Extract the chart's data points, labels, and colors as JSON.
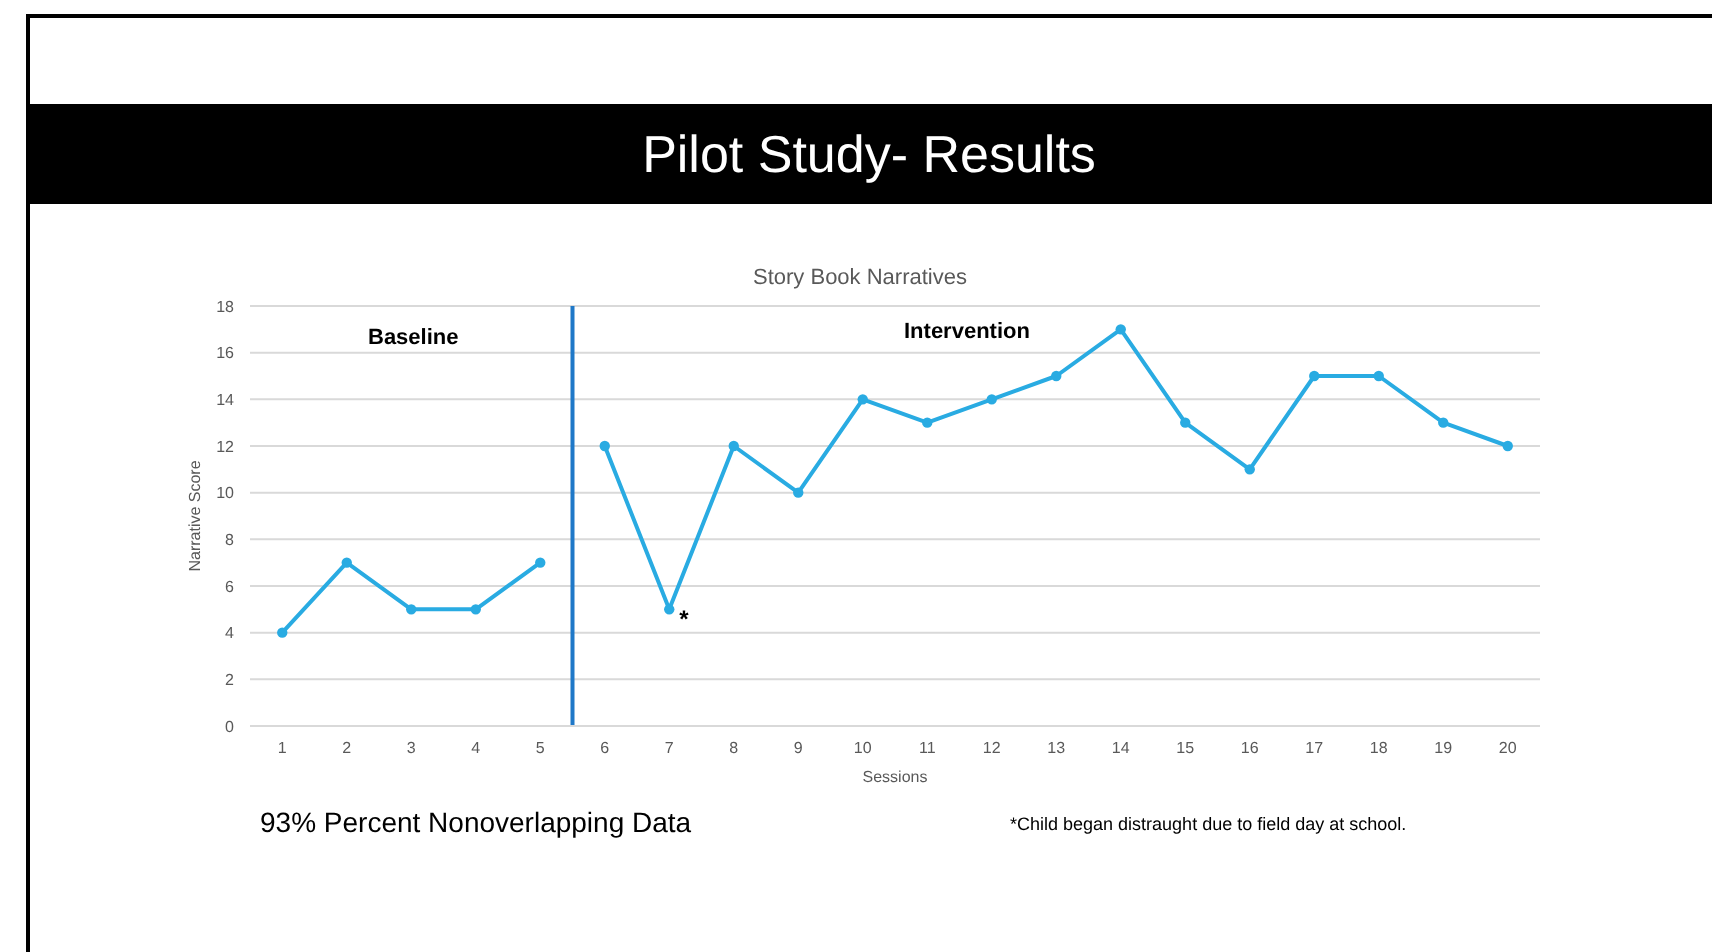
{
  "chart_data": {
    "type": "line",
    "title": "Pilot Study- Results",
    "subtitle": "Story Book Narratives",
    "xlabel": "Sessions",
    "ylabel": "Narrative Score",
    "xlim": [
      0.5,
      20.5
    ],
    "xticks": [
      1,
      2,
      3,
      4,
      5,
      6,
      7,
      8,
      9,
      10,
      11,
      12,
      13,
      14,
      15,
      16,
      17,
      18,
      19,
      20
    ],
    "ylim": [
      0,
      18
    ],
    "yticks": [
      0,
      2,
      4,
      6,
      8,
      10,
      12,
      14,
      16,
      18
    ],
    "grid": "y",
    "marker": "circle",
    "line_style": "solid",
    "series": [
      {
        "color": "#29abe2",
        "x": [
          1,
          2,
          3,
          4,
          5
        ],
        "values": [
          4,
          7,
          5,
          5,
          7
        ]
      },
      {
        "color": "#29abe2",
        "x": [
          6,
          7,
          8,
          9,
          10,
          11,
          12,
          13,
          14,
          15,
          16,
          17,
          18,
          19,
          20
        ],
        "values": [
          12,
          5,
          12,
          10,
          14,
          13,
          14,
          15,
          17,
          13,
          11,
          15,
          15,
          13,
          12
        ]
      }
    ],
    "ref_lines": [
      {
        "axis": "x",
        "value": 5.5,
        "color": "#1f78c8"
      }
    ],
    "annotations": [
      "Baseline",
      "Intervention",
      {
        "text": "*",
        "x": 7,
        "y": 5
      },
      "93% Percent Nonoverlapping Data",
      "*Child began distraught due to field day at school."
    ]
  }
}
